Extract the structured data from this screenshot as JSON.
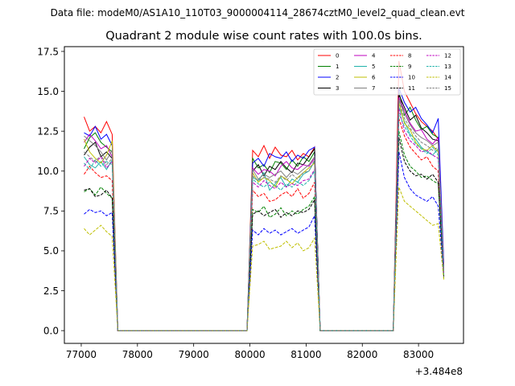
{
  "chart_data": {
    "type": "line",
    "suptitle": "Data file: modeM0/AS1A10_110T03_9000004114_28674cztM0_level2_quad_clean.evt",
    "title": "Quadrant 2 module wise count rates with 100.0s bins.",
    "x_offset_label": "+3.484e8",
    "xlabel": "",
    "ylabel": "",
    "xlim": [
      76700,
      83800
    ],
    "ylim": [
      -0.8,
      17.8
    ],
    "xticks": [
      77000,
      78000,
      79000,
      80000,
      81000,
      82000,
      83000
    ],
    "xtick_labels": [
      "77000",
      "78000",
      "79000",
      "80000",
      "81000",
      "82000",
      "83000"
    ],
    "yticks": [
      0.0,
      2.5,
      5.0,
      7.5,
      10.0,
      12.5,
      15.0,
      17.5
    ],
    "ytick_labels": [
      "0.0",
      "2.5",
      "5.0",
      "7.5",
      "10.0",
      "12.5",
      "15.0",
      "17.5"
    ],
    "x": [
      77050,
      77150,
      77250,
      77350,
      77450,
      77550,
      77650,
      77750,
      77850,
      77950,
      78050,
      78150,
      78250,
      78350,
      78450,
      78550,
      78650,
      78750,
      78850,
      78950,
      79050,
      79150,
      79250,
      79350,
      79450,
      79550,
      79650,
      79750,
      79850,
      79950,
      80050,
      80150,
      80250,
      80350,
      80450,
      80550,
      80650,
      80750,
      80850,
      80950,
      81050,
      81150,
      81250,
      81350,
      81450,
      81550,
      81650,
      81750,
      81850,
      81950,
      82050,
      82150,
      82250,
      82350,
      82450,
      82550,
      82650,
      82750,
      82850,
      82950,
      83050,
      83150,
      83250,
      83350,
      83450
    ],
    "legend": {
      "location": "upper right",
      "ncol": 4
    },
    "series": [
      {
        "name": "0",
        "color": "#ff0000",
        "dash": false,
        "values": [
          13.4,
          12.5,
          12.8,
          12.4,
          13.1,
          12.3,
          0,
          0,
          0,
          0,
          0,
          0,
          0,
          0,
          0,
          0,
          0,
          0,
          0,
          0,
          0,
          0,
          0,
          0,
          0,
          0,
          0,
          0,
          0,
          0,
          11.3,
          10.9,
          11.6,
          10.8,
          11.5,
          11.0,
          10.9,
          11.3,
          10.7,
          11.1,
          10.9,
          11.5,
          0,
          0,
          0,
          0,
          0,
          0,
          0,
          0,
          0,
          0,
          0,
          0,
          0,
          0,
          16.9,
          15.0,
          14.3,
          13.6,
          13.1,
          12.8,
          12.5,
          12.0,
          4.0
        ]
      },
      {
        "name": "1",
        "color": "#008000",
        "dash": false,
        "values": [
          11.4,
          12.1,
          12.4,
          11.8,
          11.5,
          11.2,
          0,
          0,
          0,
          0,
          0,
          0,
          0,
          0,
          0,
          0,
          0,
          0,
          0,
          0,
          0,
          0,
          0,
          0,
          0,
          0,
          0,
          0,
          0,
          0,
          10.8,
          10.2,
          10.4,
          9.9,
          10.6,
          10.5,
          10.1,
          10.7,
          10.3,
          10.9,
          10.6,
          11.2,
          0,
          0,
          0,
          0,
          0,
          0,
          0,
          0,
          0,
          0,
          0,
          0,
          0,
          0,
          15.0,
          13.5,
          14.0,
          13.2,
          12.6,
          12.8,
          12.3,
          12.1,
          3.8
        ]
      },
      {
        "name": "2",
        "color": "#0000ff",
        "dash": false,
        "values": [
          12.4,
          12.2,
          12.8,
          12.0,
          12.3,
          11.6,
          0,
          0,
          0,
          0,
          0,
          0,
          0,
          0,
          0,
          0,
          0,
          0,
          0,
          0,
          0,
          0,
          0,
          0,
          0,
          0,
          0,
          0,
          0,
          0,
          10.5,
          10.8,
          10.3,
          11.1,
          10.9,
          10.8,
          11.2,
          10.6,
          11.0,
          10.8,
          11.3,
          11.5,
          0,
          0,
          0,
          0,
          0,
          0,
          0,
          0,
          0,
          0,
          0,
          0,
          0,
          0,
          15.2,
          14.3,
          13.7,
          14.0,
          13.3,
          12.9,
          12.4,
          13.3,
          4.2
        ]
      },
      {
        "name": "3",
        "color": "#000000",
        "dash": false,
        "values": [
          11.0,
          11.5,
          11.8,
          10.9,
          11.2,
          10.8,
          0,
          0,
          0,
          0,
          0,
          0,
          0,
          0,
          0,
          0,
          0,
          0,
          0,
          0,
          0,
          0,
          0,
          0,
          0,
          0,
          0,
          0,
          0,
          0,
          10.0,
          10.4,
          9.7,
          10.3,
          10.1,
          10.6,
          10.2,
          9.9,
          10.5,
          10.4,
          10.9,
          11.4,
          0,
          0,
          0,
          0,
          0,
          0,
          0,
          0,
          0,
          0,
          0,
          0,
          0,
          0,
          14.8,
          14.0,
          13.2,
          13.5,
          12.7,
          12.4,
          12.0,
          11.9,
          3.7
        ]
      },
      {
        "name": "4",
        "color": "#bf00bf",
        "dash": false,
        "values": [
          11.8,
          12.3,
          11.9,
          11.4,
          11.6,
          10.9,
          0,
          0,
          0,
          0,
          0,
          0,
          0,
          0,
          0,
          0,
          0,
          0,
          0,
          0,
          0,
          0,
          0,
          0,
          0,
          0,
          0,
          0,
          0,
          0,
          10.2,
          9.8,
          10.1,
          10.0,
          9.7,
          10.3,
          10.6,
          10.2,
          10.1,
          10.4,
          10.3,
          10.8,
          0,
          0,
          0,
          0,
          0,
          0,
          0,
          0,
          0,
          0,
          0,
          0,
          0,
          0,
          14.6,
          13.8,
          13.0,
          12.5,
          12.6,
          12.0,
          11.7,
          12.1,
          3.9
        ]
      },
      {
        "name": "5",
        "color": "#20b2aa",
        "dash": false,
        "values": [
          10.9,
          10.4,
          10.2,
          10.6,
          10.1,
          10.7,
          0,
          0,
          0,
          0,
          0,
          0,
          0,
          0,
          0,
          0,
          0,
          0,
          0,
          0,
          0,
          0,
          0,
          0,
          0,
          0,
          0,
          0,
          0,
          0,
          9.6,
          9.4,
          9.9,
          8.8,
          9.2,
          9.6,
          9.0,
          9.5,
          9.3,
          9.8,
          10.0,
          10.6,
          0,
          0,
          0,
          0,
          0,
          0,
          0,
          0,
          0,
          0,
          0,
          0,
          0,
          0,
          14.0,
          13.1,
          12.3,
          12.0,
          11.5,
          11.2,
          11.0,
          11.4,
          3.5
        ]
      },
      {
        "name": "6",
        "color": "#bfbf00",
        "dash": false,
        "values": [
          12.0,
          11.2,
          10.8,
          10.5,
          11.0,
          11.9,
          0,
          0,
          0,
          0,
          0,
          0,
          0,
          0,
          0,
          0,
          0,
          0,
          0,
          0,
          0,
          0,
          0,
          0,
          0,
          0,
          0,
          0,
          0,
          0,
          9.9,
          9.3,
          9.6,
          9.4,
          9.0,
          9.7,
          9.5,
          9.2,
          9.6,
          9.9,
          10.2,
          10.5,
          0,
          0,
          0,
          0,
          0,
          0,
          0,
          0,
          0,
          0,
          0,
          0,
          0,
          0,
          14.3,
          13.0,
          12.6,
          11.8,
          11.4,
          11.3,
          11.6,
          11.2,
          3.6
        ]
      },
      {
        "name": "7",
        "color": "#808080",
        "dash": false,
        "values": [
          12.2,
          11.9,
          11.6,
          11.2,
          10.7,
          11.3,
          0,
          0,
          0,
          0,
          0,
          0,
          0,
          0,
          0,
          0,
          0,
          0,
          0,
          0,
          0,
          0,
          0,
          0,
          0,
          0,
          0,
          0,
          0,
          0,
          10.1,
          9.5,
          9.8,
          9.6,
          9.8,
          10.0,
          9.6,
          10.0,
          9.8,
          10.1,
          10.4,
          10.9,
          0,
          0,
          0,
          0,
          0,
          0,
          0,
          0,
          0,
          0,
          0,
          0,
          0,
          0,
          14.5,
          13.6,
          12.9,
          12.4,
          12.1,
          11.9,
          11.6,
          11.8,
          3.8
        ]
      },
      {
        "name": "8",
        "color": "#ff0000",
        "dash": true,
        "values": [
          9.8,
          10.3,
          9.9,
          9.6,
          9.7,
          9.4,
          0,
          0,
          0,
          0,
          0,
          0,
          0,
          0,
          0,
          0,
          0,
          0,
          0,
          0,
          0,
          0,
          0,
          0,
          0,
          0,
          0,
          0,
          0,
          0,
          8.8,
          8.4,
          8.6,
          8.1,
          8.2,
          8.5,
          8.7,
          8.4,
          8.9,
          8.3,
          8.6,
          9.3,
          0,
          0,
          0,
          0,
          0,
          0,
          0,
          0,
          0,
          0,
          0,
          0,
          0,
          0,
          13.3,
          12.2,
          11.5,
          11.1,
          10.7,
          10.9,
          10.3,
          10.0,
          3.5
        ]
      },
      {
        "name": "9",
        "color": "#008000",
        "dash": true,
        "values": [
          8.7,
          8.9,
          8.5,
          9.0,
          8.6,
          8.3,
          0,
          0,
          0,
          0,
          0,
          0,
          0,
          0,
          0,
          0,
          0,
          0,
          0,
          0,
          0,
          0,
          0,
          0,
          0,
          0,
          0,
          0,
          0,
          0,
          7.6,
          7.4,
          7.8,
          7.1,
          7.3,
          7.7,
          7.2,
          7.5,
          7.3,
          7.6,
          7.8,
          8.4,
          0,
          0,
          0,
          0,
          0,
          0,
          0,
          0,
          0,
          0,
          0,
          0,
          0,
          0,
          12.5,
          11.0,
          10.3,
          10.0,
          9.6,
          9.7,
          9.4,
          9.2,
          3.3
        ]
      },
      {
        "name": "10",
        "color": "#0000ff",
        "dash": true,
        "values": [
          7.3,
          7.6,
          7.4,
          7.5,
          7.2,
          7.4,
          0,
          0,
          0,
          0,
          0,
          0,
          0,
          0,
          0,
          0,
          0,
          0,
          0,
          0,
          0,
          0,
          0,
          0,
          0,
          0,
          0,
          0,
          0,
          0,
          6.3,
          6.0,
          6.4,
          6.1,
          6.3,
          6.0,
          6.2,
          6.4,
          6.1,
          6.3,
          6.5,
          7.2,
          0,
          0,
          0,
          0,
          0,
          0,
          0,
          0,
          0,
          0,
          0,
          0,
          0,
          0,
          11.2,
          9.6,
          8.9,
          8.5,
          8.3,
          8.1,
          8.4,
          7.8,
          3.4
        ]
      },
      {
        "name": "11",
        "color": "#000000",
        "dash": true,
        "values": [
          8.8,
          8.9,
          8.4,
          8.5,
          8.8,
          8.3,
          0,
          0,
          0,
          0,
          0,
          0,
          0,
          0,
          0,
          0,
          0,
          0,
          0,
          0,
          0,
          0,
          0,
          0,
          0,
          0,
          0,
          0,
          0,
          0,
          7.3,
          7.5,
          7.2,
          7.4,
          7.6,
          7.1,
          7.4,
          7.2,
          7.5,
          7.4,
          7.6,
          8.2,
          0,
          0,
          0,
          0,
          0,
          0,
          0,
          0,
          0,
          0,
          0,
          0,
          0,
          0,
          12.1,
          10.6,
          10.0,
          9.7,
          9.8,
          9.5,
          9.8,
          9.3,
          3.4
        ]
      },
      {
        "name": "12",
        "color": "#bf00bf",
        "dash": true,
        "values": [
          10.3,
          10.8,
          10.5,
          10.9,
          10.2,
          10.6,
          0,
          0,
          0,
          0,
          0,
          0,
          0,
          0,
          0,
          0,
          0,
          0,
          0,
          0,
          0,
          0,
          0,
          0,
          0,
          0,
          0,
          0,
          0,
          0,
          9.3,
          9.0,
          9.4,
          9.1,
          8.9,
          9.3,
          9.0,
          9.2,
          9.1,
          9.4,
          9.5,
          10.1,
          0,
          0,
          0,
          0,
          0,
          0,
          0,
          0,
          0,
          0,
          0,
          0,
          0,
          0,
          13.9,
          12.5,
          11.9,
          11.6,
          11.2,
          11.3,
          11.0,
          10.8,
          3.6
        ]
      },
      {
        "name": "13",
        "color": "#20b2aa",
        "dash": true,
        "values": [
          10.5,
          10.1,
          10.7,
          10.3,
          10.6,
          10.4,
          0,
          0,
          0,
          0,
          0,
          0,
          0,
          0,
          0,
          0,
          0,
          0,
          0,
          0,
          0,
          0,
          0,
          0,
          0,
          0,
          0,
          0,
          0,
          0,
          9.5,
          9.2,
          9.0,
          9.3,
          9.1,
          8.8,
          9.2,
          9.0,
          9.3,
          9.1,
          9.4,
          10.0,
          0,
          0,
          0,
          0,
          0,
          0,
          0,
          0,
          0,
          0,
          0,
          0,
          0,
          0,
          13.6,
          12.8,
          12.2,
          11.7,
          11.4,
          11.1,
          11.5,
          11.0,
          3.5
        ]
      },
      {
        "name": "14",
        "color": "#bfbf00",
        "dash": true,
        "values": [
          6.4,
          6.0,
          6.3,
          6.6,
          6.2,
          5.9,
          0,
          0,
          0,
          0,
          0,
          0,
          0,
          0,
          0,
          0,
          0,
          0,
          0,
          0,
          0,
          0,
          0,
          0,
          0,
          0,
          0,
          0,
          0,
          0,
          5.3,
          5.4,
          5.6,
          5.1,
          5.2,
          5.3,
          5.6,
          5.2,
          5.5,
          5.0,
          5.2,
          5.8,
          0,
          0,
          0,
          0,
          0,
          0,
          0,
          0,
          0,
          0,
          0,
          0,
          0,
          0,
          9.0,
          8.1,
          7.8,
          7.5,
          7.2,
          6.9,
          6.6,
          6.7,
          3.2
        ]
      },
      {
        "name": "15",
        "color": "#808080",
        "dash": true,
        "values": [
          11.2,
          10.9,
          10.6,
          11.0,
          10.4,
          10.8,
          0,
          0,
          0,
          0,
          0,
          0,
          0,
          0,
          0,
          0,
          0,
          0,
          0,
          0,
          0,
          0,
          0,
          0,
          0,
          0,
          0,
          0,
          0,
          0,
          9.7,
          9.4,
          9.6,
          9.5,
          9.3,
          9.7,
          9.4,
          9.8,
          9.5,
          9.9,
          10.0,
          10.7,
          0,
          0,
          0,
          0,
          0,
          0,
          0,
          0,
          0,
          0,
          0,
          0,
          0,
          0,
          14.4,
          13.3,
          12.7,
          12.2,
          11.8,
          11.6,
          11.3,
          11.5,
          3.7
        ]
      }
    ]
  }
}
